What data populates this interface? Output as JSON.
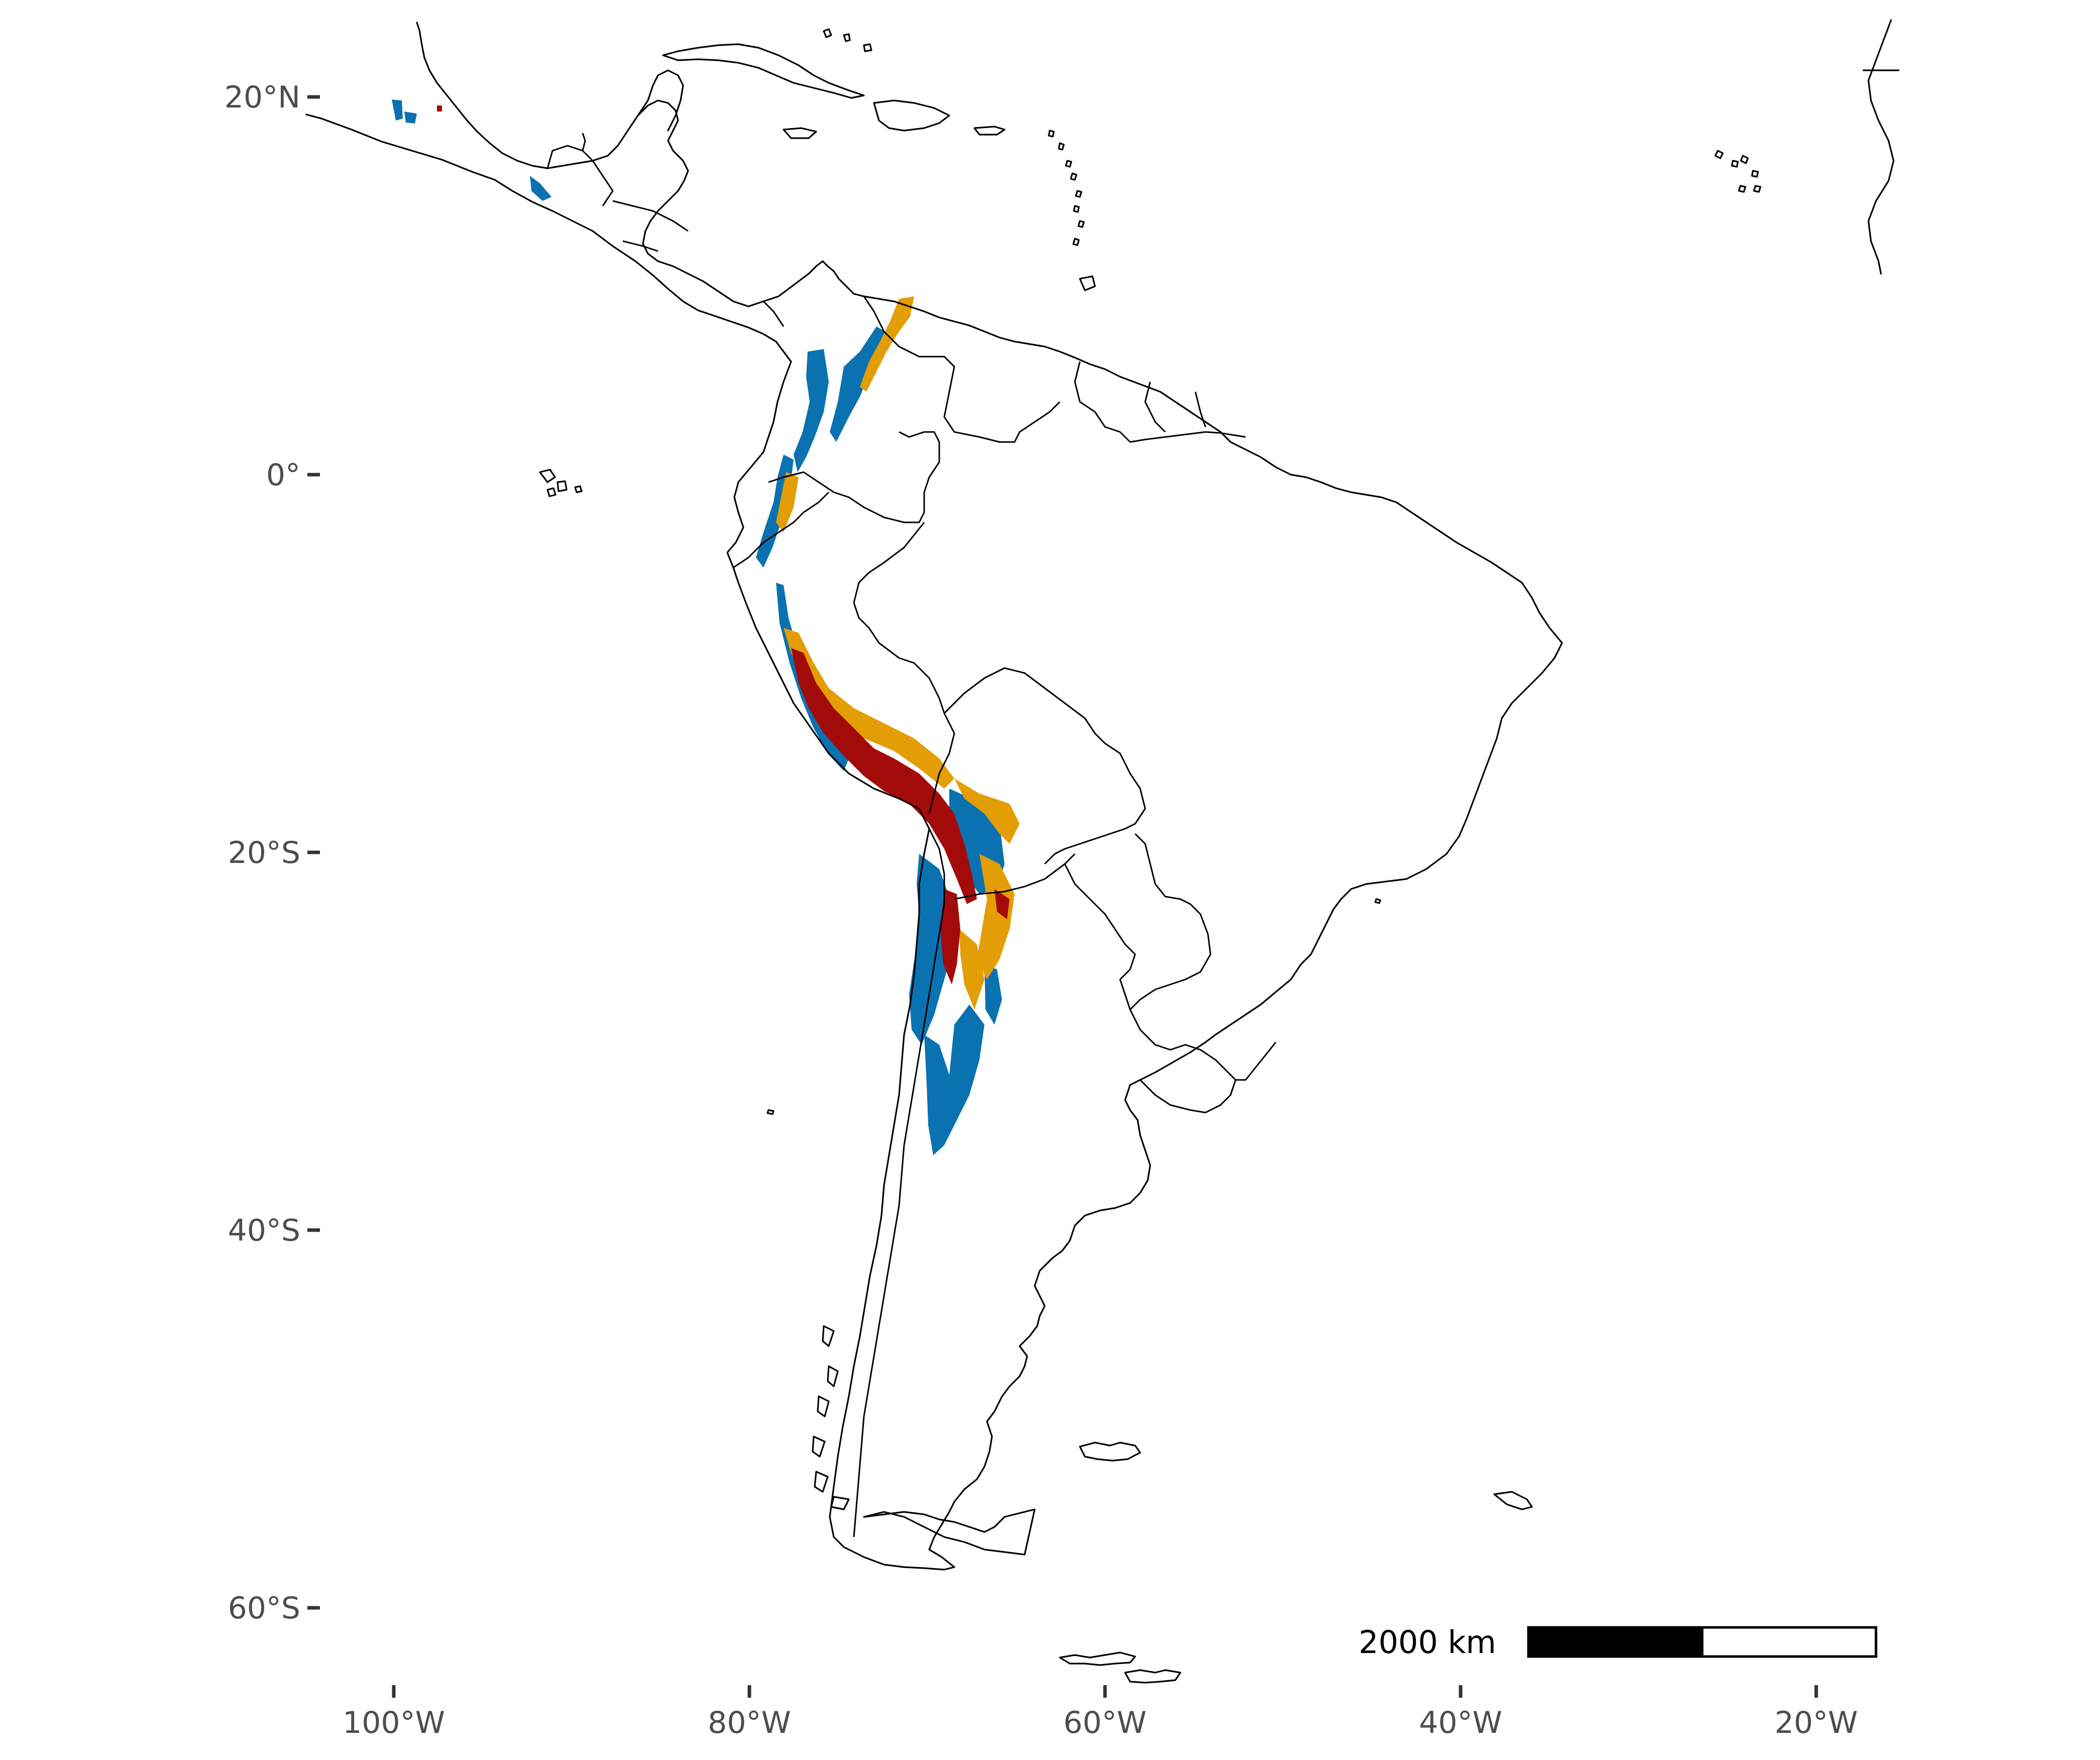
{
  "map": {
    "y_axis": {
      "ticks": [
        {
          "value": 20,
          "label": "20°N"
        },
        {
          "value": 0,
          "label": "0°"
        },
        {
          "value": -20,
          "label": "20°S"
        },
        {
          "value": -40,
          "label": "40°S"
        },
        {
          "value": -60,
          "label": "60°S"
        }
      ]
    },
    "x_axis": {
      "ticks": [
        {
          "value": -100,
          "label": "100°W"
        },
        {
          "value": -80,
          "label": "80°W"
        },
        {
          "value": -60,
          "label": "60°W"
        },
        {
          "value": -40,
          "label": "40°W"
        },
        {
          "value": -20,
          "label": "20°W"
        }
      ]
    },
    "scale_bar": {
      "label": "2000 km",
      "length_km": 2000
    },
    "colors": {
      "blue": "#0a72b0",
      "orange": "#e39d05",
      "red": "#a30b0b",
      "outline": "#000000"
    }
  }
}
